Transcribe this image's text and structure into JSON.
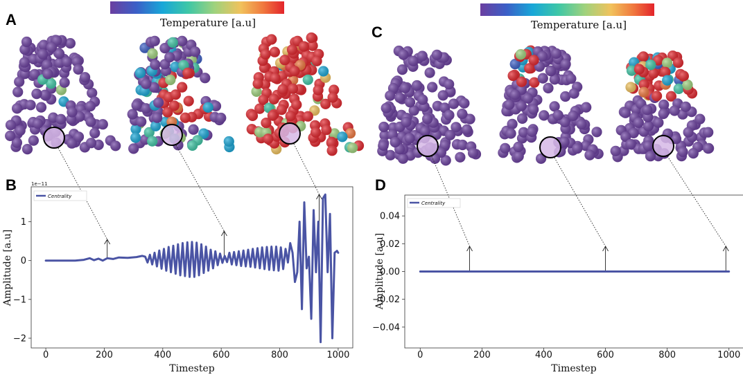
{
  "colors": {
    "series": "#4a54a4",
    "particle_base": "#6b3fa0",
    "colormap": [
      "#6b3fa0",
      "#3b5fc7",
      "#18a7d8",
      "#3fc7a6",
      "#9fd27d",
      "#f1c25c",
      "#f0783e",
      "#e3242b"
    ]
  },
  "panels": {
    "a": {
      "letter": "A"
    },
    "b": {
      "letter": "B"
    },
    "c": {
      "letter": "C"
    },
    "d": {
      "letter": "D"
    }
  },
  "colorbars": {
    "left": {
      "label": "Temperature [a.u]"
    },
    "right": {
      "label": "Temperature [a.u]"
    }
  },
  "chart_data": [
    {
      "id": "B",
      "type": "line",
      "title": "",
      "xlabel": "Timestep",
      "ylabel": "Amplitude [a.u]",
      "y_exponent_label": "1e−11",
      "legend": {
        "label": "Centrality",
        "position": "top-left"
      },
      "xlim": [
        -50,
        1050
      ],
      "ylim": [
        -2.25,
        1.9
      ],
      "x_ticks": [
        0,
        200,
        400,
        600,
        800,
        1000
      ],
      "x_tick_labels": [
        "0",
        "200",
        "400",
        "600",
        "800",
        "1000"
      ],
      "y_ticks": [
        -2,
        -1,
        0,
        1
      ],
      "y_tick_labels": [
        "−2",
        "−1",
        "0",
        "1"
      ],
      "series": [
        {
          "name": "Centrality",
          "x": [
            0,
            100,
            130,
            150,
            165,
            180,
            195,
            210,
            230,
            250,
            280,
            310,
            330,
            340,
            348,
            356,
            364,
            372,
            380,
            388,
            396,
            404,
            412,
            420,
            428,
            436,
            444,
            452,
            460,
            468,
            476,
            484,
            492,
            500,
            508,
            516,
            524,
            532,
            540,
            548,
            556,
            564,
            572,
            580,
            588,
            596,
            604,
            612,
            620,
            628,
            636,
            644,
            652,
            660,
            668,
            676,
            684,
            692,
            700,
            708,
            716,
            724,
            732,
            740,
            748,
            756,
            764,
            772,
            780,
            788,
            796,
            804,
            812,
            820,
            828,
            836,
            844,
            852,
            860,
            868,
            876,
            884,
            892,
            900,
            908,
            916,
            924,
            932,
            940,
            948,
            956,
            964,
            972,
            980,
            988,
            996,
            1000
          ],
          "y": [
            0.0,
            0.0,
            0.02,
            0.06,
            0.01,
            0.05,
            0.0,
            0.06,
            0.04,
            0.08,
            0.07,
            0.09,
            0.12,
            0.1,
            -0.05,
            0.15,
            -0.1,
            0.2,
            -0.15,
            0.26,
            -0.21,
            0.3,
            -0.26,
            0.35,
            -0.3,
            0.38,
            -0.34,
            0.42,
            -0.38,
            0.45,
            -0.4,
            0.47,
            -0.42,
            0.48,
            -0.42,
            0.46,
            -0.38,
            0.42,
            -0.32,
            0.36,
            -0.26,
            0.28,
            -0.2,
            0.24,
            -0.12,
            0.18,
            -0.06,
            0.12,
            -0.04,
            0.2,
            -0.1,
            0.22,
            -0.12,
            0.24,
            -0.14,
            0.26,
            -0.15,
            0.28,
            -0.16,
            0.3,
            -0.18,
            0.32,
            -0.2,
            0.34,
            -0.22,
            0.35,
            -0.24,
            0.36,
            -0.25,
            0.36,
            -0.26,
            0.34,
            -0.22,
            0.3,
            -0.05,
            0.45,
            0.2,
            -0.55,
            -0.3,
            1.0,
            -1.25,
            1.5,
            -0.2,
            0.1,
            -1.5,
            1.3,
            -0.3,
            1.0,
            -2.1,
            1.6,
            1.7,
            -0.3,
            1.2,
            -2.0,
            0.2,
            0.25,
            0.2
          ]
        }
      ],
      "arrows_at_x": [
        210,
        610,
        935
      ]
    },
    {
      "id": "D",
      "type": "line",
      "title": "",
      "xlabel": "Timestep",
      "ylabel": "Amplitude [a.u]",
      "legend": {
        "label": "Centrality",
        "position": "top-left"
      },
      "xlim": [
        -50,
        1050
      ],
      "ylim": [
        -0.055,
        0.055
      ],
      "x_ticks": [
        0,
        200,
        400,
        600,
        800,
        1000
      ],
      "x_tick_labels": [
        "0",
        "200",
        "400",
        "600",
        "800",
        "1000"
      ],
      "y_ticks": [
        -0.04,
        -0.02,
        0.0,
        0.02,
        0.04
      ],
      "y_tick_labels": [
        "−0.04",
        "−0.02",
        "0.00",
        "0.02",
        "0.04"
      ],
      "series": [
        {
          "name": "Centrality",
          "x": [
            0,
            1000
          ],
          "y": [
            0.0,
            0.0
          ]
        }
      ],
      "arrows_at_x": [
        160,
        600,
        990
      ]
    }
  ]
}
